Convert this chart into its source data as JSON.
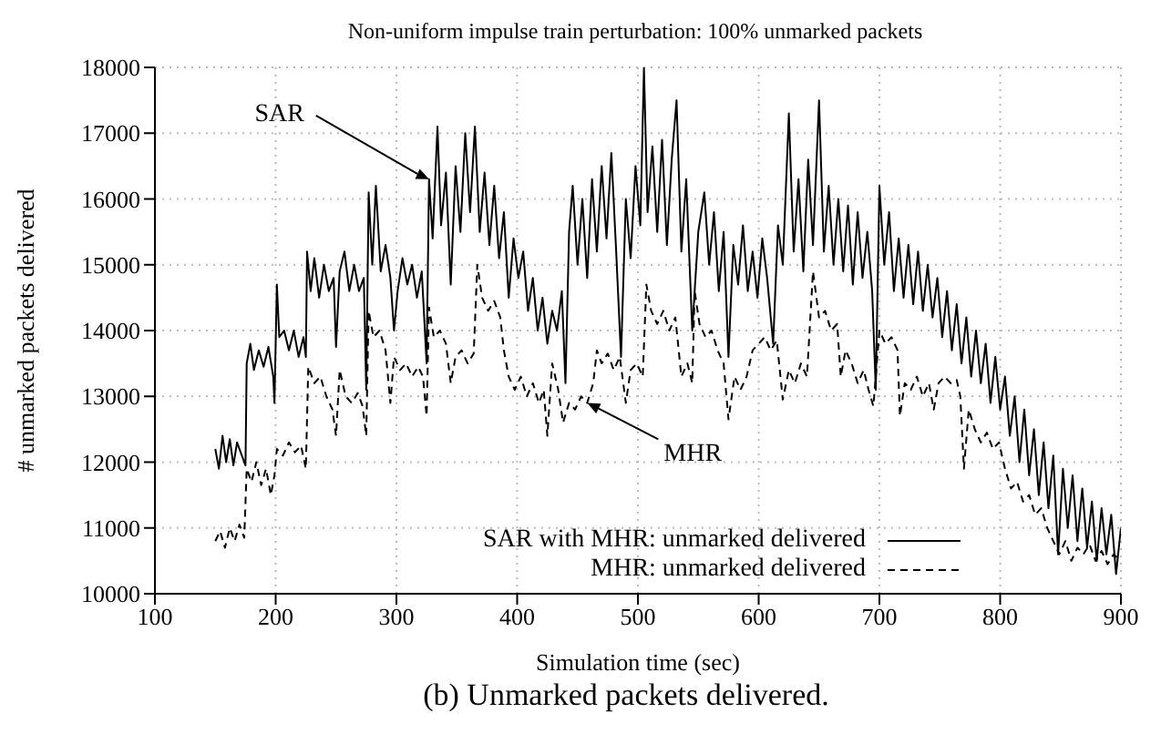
{
  "chart_data": {
    "type": "line",
    "title": "Non-uniform impulse train perturbation: 100% unmarked packets",
    "xlabel": "Simulation time (sec)",
    "ylabel": "# unmarked packets delivered",
    "subtitle": "(b) Unmarked packets delivered.",
    "xlim": [
      100,
      900
    ],
    "xticks": [
      100,
      200,
      300,
      400,
      500,
      600,
      700,
      800,
      900
    ],
    "ylim": [
      10000,
      18000
    ],
    "yticks": [
      10000,
      11000,
      12000,
      13000,
      14000,
      15000,
      16000,
      17000,
      18000
    ],
    "grid": true,
    "legend": "bottom right",
    "marker": "none",
    "annotations": [
      {
        "text": "SAR",
        "x": 327,
        "y": 16300
      },
      {
        "text": "MHR",
        "x": 458,
        "y": 12900
      }
    ],
    "series": [
      {
        "name": "SAR with MHR: unmarked delivered",
        "color": "#000000",
        "line_style": "solid",
        "x": [
          150,
          153,
          156,
          159,
          162,
          165,
          168,
          172,
          175,
          176,
          179,
          182,
          186,
          190,
          194,
          198,
          199,
          201,
          203,
          207,
          211,
          215,
          219,
          223,
          225,
          226,
          229,
          232,
          236,
          240,
          244,
          248,
          250,
          253,
          257,
          261,
          265,
          269,
          273,
          275,
          277,
          280,
          283,
          287,
          291,
          295,
          298,
          301,
          305,
          309,
          313,
          317,
          321,
          325,
          327,
          330,
          334,
          337,
          341,
          345,
          349,
          353,
          357,
          361,
          365,
          369,
          373,
          377,
          381,
          385,
          389,
          393,
          397,
          401,
          405,
          409,
          413,
          417,
          421,
          425,
          429,
          433,
          437,
          440,
          443,
          446,
          450,
          454,
          458,
          462,
          466,
          470,
          474,
          478,
          482,
          486,
          490,
          494,
          498,
          502,
          505,
          508,
          512,
          516,
          520,
          524,
          528,
          532,
          536,
          540,
          545,
          550,
          555,
          559,
          563,
          567,
          571,
          575,
          579,
          583,
          587,
          591,
          595,
          599,
          603,
          607,
          612,
          616,
          620,
          625,
          629,
          633,
          637,
          641,
          645,
          650,
          654,
          658,
          662,
          666,
          670,
          674,
          678,
          682,
          686,
          690,
          694,
          697,
          700,
          704,
          708,
          712,
          716,
          720,
          724,
          728,
          732,
          736,
          740,
          744,
          748,
          752,
          756,
          760,
          764,
          768,
          772,
          776,
          780,
          784,
          788,
          792,
          796,
          800,
          804,
          808,
          812,
          816,
          820,
          824,
          828,
          832,
          836,
          840,
          844,
          848,
          852,
          856,
          860,
          864,
          868,
          872,
          876,
          880,
          884,
          888,
          892,
          896,
          900
        ],
        "values": [
          12200,
          11900,
          12400,
          12000,
          12350,
          11950,
          12300,
          12100,
          11950,
          13500,
          13800,
          13400,
          13700,
          13450,
          13750,
          13300,
          12900,
          14700,
          13900,
          14000,
          13700,
          14000,
          13600,
          13900,
          13600,
          15200,
          14600,
          15100,
          14500,
          15000,
          14600,
          14800,
          13750,
          14900,
          15200,
          14600,
          15000,
          14600,
          14800,
          13100,
          16100,
          15000,
          16200,
          14900,
          15300,
          14800,
          14000,
          14600,
          15100,
          14700,
          15000,
          14500,
          14900,
          13500,
          16300,
          15400,
          17100,
          15600,
          16400,
          14700,
          16500,
          15500,
          17000,
          15800,
          17100,
          15500,
          16400,
          15300,
          16200,
          15100,
          15800,
          14500,
          15400,
          14800,
          15200,
          14300,
          14800,
          14000,
          14500,
          13800,
          14300,
          14000,
          14600,
          13200,
          15500,
          16200,
          15000,
          16000,
          14800,
          16300,
          15200,
          16500,
          15400,
          16700,
          15200,
          13600,
          16000,
          15100,
          16500,
          15600,
          18000,
          15800,
          16800,
          15500,
          16900,
          15300,
          16600,
          17500,
          15200,
          16300,
          14000,
          15500,
          16100,
          15000,
          15800,
          14600,
          15500,
          13600,
          15300,
          14700,
          15600,
          14600,
          15200,
          14500,
          15400,
          14800,
          13800,
          15600,
          15000,
          17300,
          15200,
          16300,
          14900,
          16600,
          15300,
          17500,
          15200,
          16200,
          15000,
          16000,
          14900,
          15900,
          14700,
          15800,
          14800,
          15500,
          14600,
          13100,
          16200,
          15000,
          15800,
          14600,
          15400,
          14500,
          15300,
          14400,
          15200,
          14300,
          15000,
          14200,
          14800,
          13900,
          14600,
          13700,
          14400,
          13500,
          14200,
          13300,
          14000,
          13200,
          13800,
          12900,
          13600,
          12800,
          13300,
          12400,
          13000,
          12000,
          12800,
          11800,
          12500,
          11500,
          12300,
          11300,
          12100,
          10600,
          11900,
          11000,
          11800,
          10800,
          11600,
          10700,
          11400,
          10500,
          11300,
          10600,
          11200,
          10300,
          11000
        ]
      },
      {
        "name": "MHR: unmarked delivered",
        "color": "#000000",
        "line_style": "dashed",
        "x": [
          150,
          154,
          158,
          162,
          166,
          170,
          174,
          176,
          180,
          184,
          188,
          192,
          196,
          199,
          201,
          206,
          211,
          216,
          221,
          225,
          227,
          232,
          237,
          242,
          247,
          250,
          253,
          258,
          263,
          268,
          272,
          275,
          277,
          281,
          286,
          291,
          295,
          298,
          303,
          308,
          313,
          318,
          322,
          325,
          327,
          331,
          336,
          341,
          345,
          349,
          354,
          359,
          364,
          367,
          371,
          376,
          381,
          386,
          389,
          393,
          398,
          403,
          408,
          413,
          418,
          422,
          425,
          429,
          434,
          438,
          443,
          448,
          453,
          458,
          463,
          466,
          470,
          475,
          480,
          485,
          490,
          494,
          499,
          504,
          507,
          511,
          516,
          521,
          526,
          531,
          536,
          541,
          545,
          547,
          551,
          556,
          561,
          566,
          571,
          575,
          580,
          585,
          590,
          595,
          600,
          605,
          610,
          615,
          620,
          625,
          630,
          635,
          640,
          645,
          650,
          655,
          660,
          665,
          668,
          672,
          677,
          682,
          687,
          691,
          695,
          700,
          705,
          710,
          715,
          717,
          721,
          726,
          731,
          736,
          741,
          745,
          749,
          754,
          759,
          764,
          767,
          770,
          774,
          779,
          784,
          789,
          794,
          799,
          804,
          809,
          814,
          819,
          824,
          829,
          834,
          839,
          844,
          849,
          854,
          859,
          864,
          869,
          874,
          879,
          884,
          889,
          894,
          900
        ],
        "values": [
          10800,
          10950,
          10700,
          11000,
          10800,
          11050,
          10850,
          11900,
          11700,
          12000,
          11650,
          11900,
          11500,
          11800,
          12200,
          12100,
          12300,
          12150,
          12250,
          11900,
          13450,
          13200,
          13300,
          13000,
          12800,
          12400,
          13400,
          13000,
          12900,
          13050,
          12850,
          12400,
          14300,
          13900,
          14000,
          13700,
          12900,
          13600,
          13400,
          13500,
          13300,
          13450,
          13300,
          12700,
          14350,
          13900,
          14000,
          13800,
          13200,
          13600,
          13700,
          13500,
          13650,
          15000,
          14500,
          14300,
          14450,
          14200,
          13700,
          13300,
          13100,
          13300,
          13000,
          13200,
          12900,
          13100,
          12400,
          13500,
          13100,
          12600,
          12900,
          12800,
          13000,
          12900,
          13200,
          13700,
          13500,
          13650,
          13400,
          13600,
          12900,
          13400,
          13500,
          13300,
          14700,
          14300,
          14100,
          14300,
          14000,
          14200,
          13300,
          13500,
          13200,
          14600,
          14100,
          13900,
          14000,
          13700,
          13500,
          12650,
          13300,
          13100,
          13300,
          13700,
          13800,
          13900,
          13700,
          13850,
          12950,
          13400,
          13200,
          13500,
          13300,
          14900,
          14200,
          14300,
          14000,
          14100,
          13300,
          13700,
          13500,
          13200,
          13400,
          13100,
          12850,
          14000,
          13800,
          13900,
          13700,
          12700,
          13200,
          13100,
          13300,
          13000,
          13200,
          12800,
          13200,
          13300,
          13200,
          13250,
          13000,
          11900,
          12800,
          12500,
          12300,
          12450,
          12200,
          12300,
          11900,
          11600,
          11700,
          11400,
          11500,
          11200,
          11300,
          11000,
          10800,
          10600,
          10800,
          10500,
          10700,
          10600,
          10750,
          10500,
          10650,
          10450,
          10600,
          10500
        ]
      }
    ]
  }
}
